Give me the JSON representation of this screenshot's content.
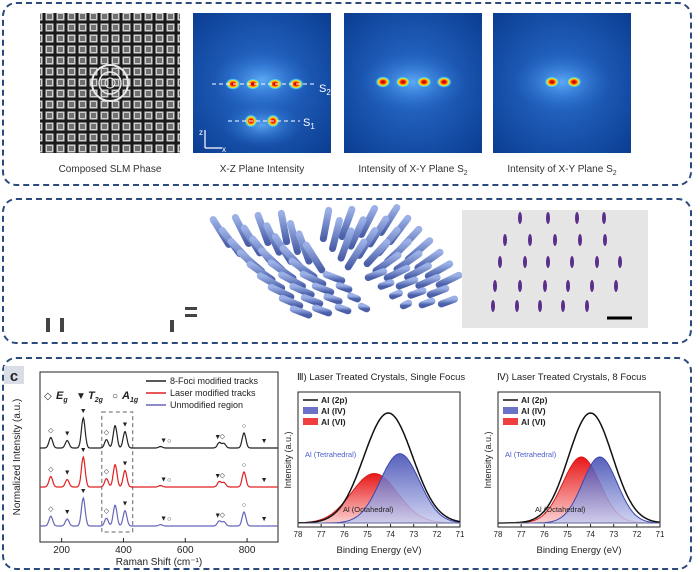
{
  "panel_a": {
    "captions": [
      "Composed SLM Phase",
      "X-Z Plane Intensity",
      "Intensity of X-Y Plane S",
      "Intensity of X-Y Plane S"
    ],
    "caption_sub": "2",
    "s2": "S",
    "s2_sub": "2",
    "s1": "S",
    "s1_sub": "1",
    "axis_x": "x",
    "axis_z": "z"
  },
  "panel_c": {
    "label": "c",
    "raman": {
      "ylabel": "Normalized Intensity (a.u.)",
      "xlabel": "Raman Shift (cm⁻¹)",
      "mode_eg": "E",
      "mode_eg_sub": "g",
      "mode_t2g": "T",
      "mode_t2g_sub": "2g",
      "mode_a1g": "A",
      "mode_a1g_sub": "1g",
      "legend": [
        {
          "label": "8-Foci modified tracks",
          "color": "#222222"
        },
        {
          "label": "Laser modified tracks",
          "color": "#e02020"
        },
        {
          "label": "Unmodified region",
          "color": "#6666bb"
        }
      ]
    },
    "xps_single": {
      "title": "Ⅲ) Laser Treated Crystals, Single Focus",
      "ylabel": "Intensity (a.u.)",
      "xlabel": "Binding Energy (eV)",
      "legend": [
        "Al (2p)",
        "Al (IV)",
        "Al (VI)"
      ],
      "tetra": "Al (Tetrahedral)",
      "octa": "Al (Octahedral)"
    },
    "xps_multi": {
      "title": "Ⅳ) Laser Treated Crystals, 8 Focus",
      "ylabel": "Intensity (a.u.)",
      "xlabel": "Binding Energy (eV)",
      "legend": [
        "Al (2p)",
        "Al (IV)",
        "Al (VI)"
      ],
      "tetra": "Al (Tetrahedral)",
      "octa": "Al (Octahedral)"
    }
  },
  "chart_data": [
    {
      "type": "line",
      "xlim": [
        130,
        900
      ],
      "xticks": [
        200,
        400,
        600,
        800
      ],
      "series": [
        {
          "name": "8-Foci modified tracks",
          "color": "#222222"
        },
        {
          "name": "Laser modified tracks",
          "color": "#e02020"
        },
        {
          "name": "Unmodified region",
          "color": "#6666bb"
        }
      ],
      "peaks": [
        {
          "x": 165,
          "h": 0.35
        },
        {
          "x": 218,
          "h": 0.25
        },
        {
          "x": 270,
          "h": 1.0
        },
        {
          "x": 345,
          "h": 0.28
        },
        {
          "x": 373,
          "h": 0.75
        },
        {
          "x": 405,
          "h": 0.55
        },
        {
          "x": 520,
          "h": 0.05
        },
        {
          "x": 710,
          "h": 0.18
        },
        {
          "x": 725,
          "h": 0.15
        },
        {
          "x": 790,
          "h": 0.5
        }
      ]
    },
    {
      "type": "line",
      "xlim": [
        78,
        71
      ],
      "xticks": [
        78,
        77,
        76,
        75,
        74,
        73,
        72,
        71
      ],
      "series": [
        {
          "name": "Al (2p)",
          "center": 74.1,
          "sigma": 1.05,
          "amp": 1.0
        },
        {
          "name": "Al (IV)",
          "center": 73.6,
          "sigma": 0.85,
          "amp": 0.63
        },
        {
          "name": "Al (VI)",
          "center": 74.7,
          "sigma": 1.0,
          "amp": 0.45
        }
      ]
    },
    {
      "type": "line",
      "xlim": [
        78,
        71
      ],
      "xticks": [
        78,
        77,
        76,
        75,
        74,
        73,
        72,
        71
      ],
      "series": [
        {
          "name": "Al (2p)",
          "center": 74.0,
          "sigma": 0.95,
          "amp": 1.0
        },
        {
          "name": "Al (IV)",
          "center": 73.6,
          "sigma": 0.75,
          "amp": 0.6
        },
        {
          "name": "Al (VI)",
          "center": 74.4,
          "sigma": 0.8,
          "amp": 0.6
        }
      ]
    }
  ]
}
